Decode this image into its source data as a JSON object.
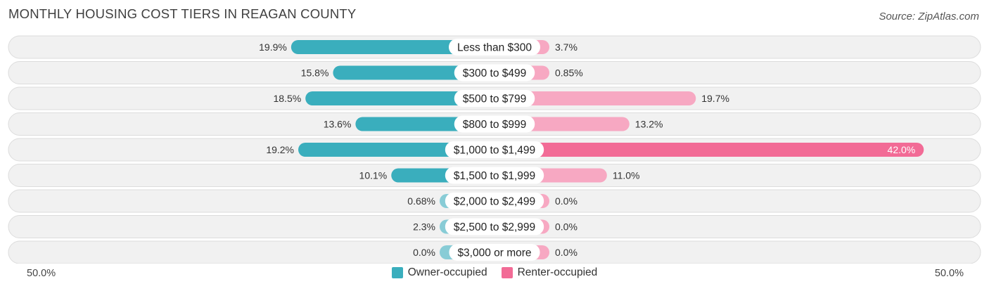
{
  "title": "MONTHLY HOUSING COST TIERS IN REAGAN COUNTY",
  "source": "Source: ZipAtlas.com",
  "colors": {
    "owner": "#3aaebd",
    "owner_light": "#88ccd6",
    "renter": "#f26b96",
    "renter_light": "#f7a8c2"
  },
  "axis": {
    "left_label": "50.0%",
    "right_label": "50.0%"
  },
  "legend": {
    "owner_label": "Owner-occupied",
    "renter_label": "Renter-occupied"
  },
  "chart_data": {
    "type": "bar",
    "orientation": "diverging-horizontal",
    "title": "MONTHLY HOUSING COST TIERS IN REAGAN COUNTY",
    "xlim": [
      -50,
      50
    ],
    "categories": [
      "Less than $300",
      "$300 to $499",
      "$500 to $799",
      "$800 to $999",
      "$1,000 to $1,499",
      "$1,500 to $1,999",
      "$2,000 to $2,499",
      "$2,500 to $2,999",
      "$3,000 or more"
    ],
    "series": [
      {
        "name": "Owner-occupied",
        "values": [
          19.9,
          15.8,
          18.5,
          13.6,
          19.2,
          10.1,
          0.68,
          2.3,
          0.0
        ],
        "labels": [
          "19.9%",
          "15.8%",
          "18.5%",
          "13.6%",
          "19.2%",
          "10.1%",
          "0.68%",
          "2.3%",
          "0.0%"
        ]
      },
      {
        "name": "Renter-occupied",
        "values": [
          3.7,
          0.85,
          19.7,
          13.2,
          42.0,
          11.0,
          0.0,
          0.0,
          0.0
        ],
        "labels": [
          "3.7%",
          "0.85%",
          "19.7%",
          "13.2%",
          "42.0%",
          "11.0%",
          "0.0%",
          "0.0%",
          "0.0%"
        ]
      }
    ],
    "legend_position": "bottom-center"
  }
}
